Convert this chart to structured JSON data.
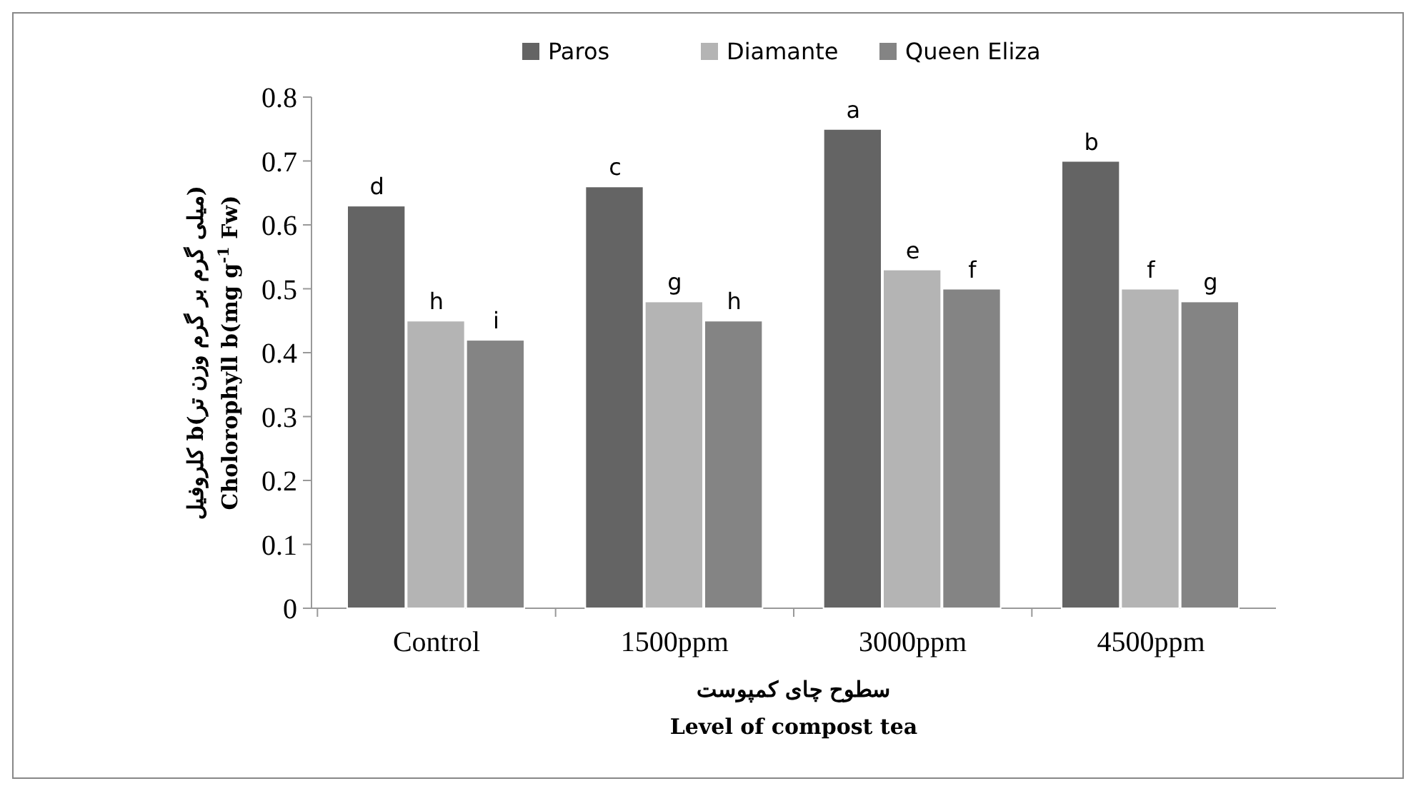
{
  "chart_data": {
    "type": "bar",
    "categories": [
      "Control",
      "1500ppm",
      "3000ppm",
      "4500ppm"
    ],
    "series": [
      {
        "name": "Paros",
        "color": "#646464",
        "values": [
          0.63,
          0.66,
          0.75,
          0.7
        ],
        "value_labels": [
          "d",
          "c",
          "a",
          "b"
        ]
      },
      {
        "name": "Diamante",
        "color": "#b4b4b4",
        "values": [
          0.45,
          0.48,
          0.53,
          0.5
        ],
        "value_labels": [
          "h",
          "g",
          "e",
          "f"
        ]
      },
      {
        "name": "Queen Eliza",
        "color": "#848484",
        "values": [
          0.42,
          0.45,
          0.5,
          0.48
        ],
        "value_labels": [
          "i",
          "h",
          "f",
          "g"
        ]
      }
    ],
    "ylim": [
      0,
      0.8
    ],
    "yticks": [
      0,
      0.1,
      0.2,
      0.3,
      0.4,
      0.5,
      0.6,
      0.7,
      0.8
    ],
    "ylabel": "کلروفیل b(میلی گرم بر گرم وزن تر)\nCholorophyll b(mg g$^{-1}$ Fw)",
    "xlabel": "سطوح چای کمپوست\nLevel of compost tea",
    "legend": "top",
    "grid": false
  }
}
